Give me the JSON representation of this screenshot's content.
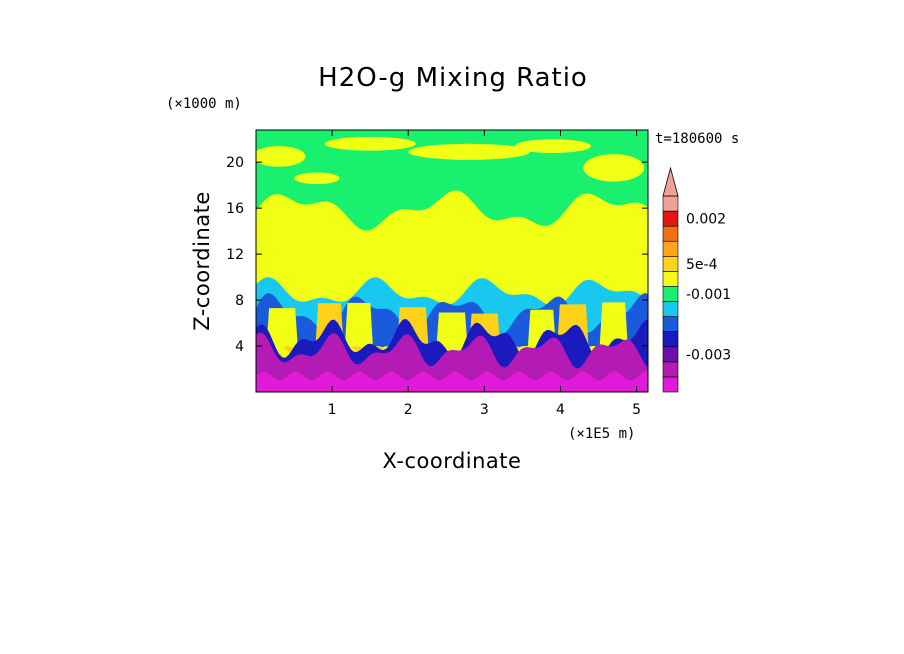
{
  "chart_data": {
    "type": "heatmap",
    "title": "H2O-g Mixing Ratio",
    "xlabel": "X-coordinate",
    "ylabel": "Z-coordinate",
    "x_unit": "(×1E5 m)",
    "y_unit": "(×1000 m)",
    "time_label": "t=180600 s",
    "xlim": [
      0,
      5.15
    ],
    "ylim": [
      0,
      22.8
    ],
    "x_ticks": [
      1,
      2,
      3,
      4,
      5
    ],
    "x_tick_labels": [
      "1",
      "2",
      "3",
      "4",
      "5"
    ],
    "y_ticks": [
      4,
      8,
      12,
      16,
      20
    ],
    "y_tick_labels": [
      "4",
      "8",
      "12",
      "16",
      "20"
    ],
    "colorbar": {
      "levels_bottom_to_top": [
        {
          "color": "#e01ad8"
        },
        {
          "color": "#b41ab4"
        },
        {
          "color": "#6e0faa"
        },
        {
          "color": "#1a1abe"
        },
        {
          "color": "#1a5adc"
        },
        {
          "color": "#19c8f0"
        },
        {
          "color": "#19f06e"
        },
        {
          "color": "#f0ff14"
        },
        {
          "color": "#ffd21a"
        },
        {
          "color": "#ffa51a"
        },
        {
          "color": "#f06e14"
        },
        {
          "color": "#e61414"
        },
        {
          "color": "#f0a096"
        }
      ],
      "labels": [
        {
          "text": "-0.003",
          "at_level": 2
        },
        {
          "text": "-0.001",
          "at_level": 6
        },
        {
          "text": "5e-4",
          "at_level": 8
        },
        {
          "text": "0.002",
          "at_level": 11
        }
      ],
      "extend_top_arrow": true
    },
    "description_bands": [
      {
        "z": [
          0,
          1
        ],
        "color": "#b41ab4"
      },
      {
        "z": [
          1,
          5
        ],
        "color": "#b41ab4"
      },
      {
        "z": [
          5,
          9
        ],
        "color": "#19c8f0"
      },
      {
        "z": [
          9,
          16.5
        ],
        "color": "#f0ff14"
      },
      {
        "z": [
          16.5,
          22.8
        ],
        "color": "#19f06e"
      }
    ]
  }
}
